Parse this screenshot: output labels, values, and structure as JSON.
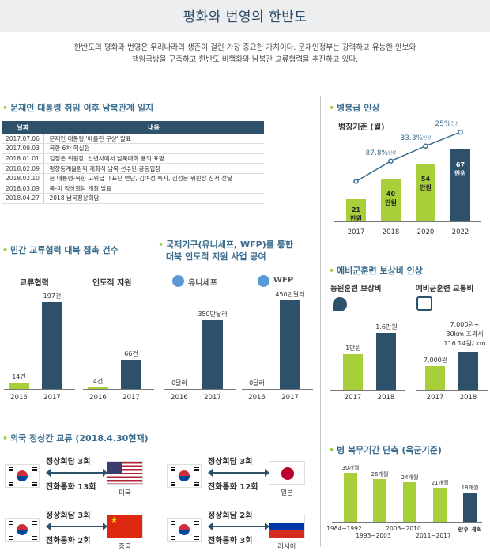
{
  "header": {
    "title": "평화와 번영의 한반도",
    "intro_line1": "한반도의 평화와 번영은 우리나라의 생존이 걸린 가장 중요한 가치이다. 문재인정부는 강력하고 유능한 안보와",
    "intro_line2": "책임국방을 구축하고 한반도 비핵화와 남북간 교류협력을 추진하고 있다."
  },
  "diary": {
    "title": "문재인 대통령 취임 이후 남북관계 일지",
    "col_date": "날짜",
    "col_content": "내용",
    "rows": [
      {
        "date": "2017.07.06",
        "text": "문재인 대통령 '베를린 구상' 발표"
      },
      {
        "date": "2017.09.03",
        "text": "북한 6차 핵실험"
      },
      {
        "date": "2018.01.01",
        "text": "김정은 위원장, 신년사에서 남북대화 용의 표명"
      },
      {
        "date": "2018.02.09",
        "text": "평창동계올림픽 개회식 남북 선수단 공동입장"
      },
      {
        "date": "2018.02.10",
        "text": "문 대통령-북한 고위급 대표단 면담, 김여정 특사, 김정은 위원장 친서 전달"
      },
      {
        "date": "2018.03.09",
        "text": "북-미 정상회담 개최 발표"
      },
      {
        "date": "2018.04.27",
        "text": "2018 남북정상회담"
      }
    ]
  },
  "salary": {
    "title": "병봉급 인상",
    "subtitle": "병장기준 (월)",
    "years": [
      "2017",
      "2018",
      "2020",
      "2022"
    ],
    "amounts": [
      21,
      40,
      54,
      67
    ],
    "bar_labels": [
      "21\n만원",
      "40\n만원",
      "54\n만원",
      "67\n만원"
    ],
    "rates": [
      "87.8%",
      "33.3%",
      "25%"
    ],
    "rate_suffix": "인상"
  },
  "civil": {
    "title": "민간 교류협력 대북 접촉 건수",
    "groups": [
      {
        "label": "교류협력",
        "years": [
          "2016",
          "2017"
        ],
        "values": [
          14,
          197
        ],
        "value_labels": [
          "14건",
          "197건"
        ]
      },
      {
        "label": "인도적 지원",
        "years": [
          "2016",
          "2017"
        ],
        "values": [
          4,
          66
        ],
        "value_labels": [
          "4건",
          "66건"
        ]
      }
    ]
  },
  "intl": {
    "title_line1": "국제기구(유니세프, WFP)를 통한",
    "title_line2": "대북 인도적 지원 사업 공여",
    "groups": [
      {
        "label": "유니세프",
        "icon": "unicef-icon",
        "years": [
          "2016",
          "2017"
        ],
        "values": [
          0,
          350
        ],
        "value_labels": [
          "0달러",
          "350만달러"
        ]
      },
      {
        "label": "WFP",
        "icon": "wfp-icon",
        "years": [
          "2016",
          "2017"
        ],
        "values": [
          0,
          450
        ],
        "value_labels": [
          "0달러",
          "450만달러"
        ]
      }
    ]
  },
  "reserve": {
    "title": "예비군훈련 보상비 인상",
    "mobilization": {
      "label": "동원훈련 보상비",
      "years": [
        "2017",
        "2018"
      ],
      "values": [
        1,
        1.6
      ],
      "value_labels": [
        "1만원",
        "1.6만원"
      ]
    },
    "transport": {
      "label": "예비군훈련 교통비",
      "years": [
        "2017",
        "2018"
      ],
      "values": [
        7000,
        7000
      ],
      "value_labels": [
        "7,000원",
        "7,000원+\n30km 초과시\n116.14원/ km"
      ]
    }
  },
  "summit": {
    "title": "외국 정상간 교류 (2018.4.30현재)",
    "summit_label": "정상회담",
    "phone_label": "전화통화",
    "countries": [
      {
        "name": "미국",
        "summit": "3회",
        "phone": "13회"
      },
      {
        "name": "일본",
        "summit": "3회",
        "phone": "12회"
      },
      {
        "name": "중국",
        "summit": "3회",
        "phone": "2회"
      },
      {
        "name": "러시아",
        "summit": "2회",
        "phone": "3회"
      }
    ]
  },
  "service": {
    "title": "병 복무기간 단축 (육군기준)",
    "periods": [
      "1984~1992",
      "1993~2003",
      "2003~2010",
      "2011~2017",
      "향후 계획"
    ],
    "months": [
      30,
      26,
      24,
      21,
      18
    ],
    "value_labels": [
      "30개월",
      "26개월",
      "24개월",
      "21개월",
      "18개월"
    ]
  },
  "chart_data": [
    {
      "type": "bar",
      "title": "병봉급 인상",
      "subtitle": "병장기준 (월)",
      "categories": [
        "2017",
        "2018",
        "2020",
        "2022"
      ],
      "values": [
        21,
        40,
        54,
        67
      ],
      "unit": "만원",
      "annotations": [
        "87.8% 인상",
        "33.3% 인상",
        "25% 인상"
      ]
    },
    {
      "type": "bar",
      "title": "민간 교류협력 대북 접촉 건수",
      "series": [
        {
          "name": "교류협력",
          "categories": [
            "2016",
            "2017"
          ],
          "values": [
            14,
            197
          ]
        },
        {
          "name": "인도적 지원",
          "categories": [
            "2016",
            "2017"
          ],
          "values": [
            4,
            66
          ]
        }
      ],
      "unit": "건"
    },
    {
      "type": "bar",
      "title": "국제기구(유니세프, WFP)를 통한 대북 인도적 지원 사업 공여",
      "series": [
        {
          "name": "유니세프",
          "categories": [
            "2016",
            "2017"
          ],
          "values": [
            0,
            350
          ]
        },
        {
          "name": "WFP",
          "categories": [
            "2016",
            "2017"
          ],
          "values": [
            0,
            450
          ]
        }
      ],
      "unit": "만달러"
    },
    {
      "type": "bar",
      "title": "예비군훈련 보상비 인상",
      "series": [
        {
          "name": "동원훈련 보상비",
          "categories": [
            "2017",
            "2018"
          ],
          "values": [
            1,
            1.6
          ]
        },
        {
          "name": "예비군훈련 교통비",
          "categories": [
            "2017",
            "2018"
          ],
          "values": [
            7000,
            7000
          ]
        }
      ]
    },
    {
      "type": "bar",
      "title": "병 복무기간 단축 (육군기준)",
      "categories": [
        "1984~1992",
        "1993~2003",
        "2003~2010",
        "2011~2017",
        "향후 계획"
      ],
      "values": [
        30,
        26,
        24,
        21,
        18
      ],
      "unit": "개월"
    }
  ]
}
